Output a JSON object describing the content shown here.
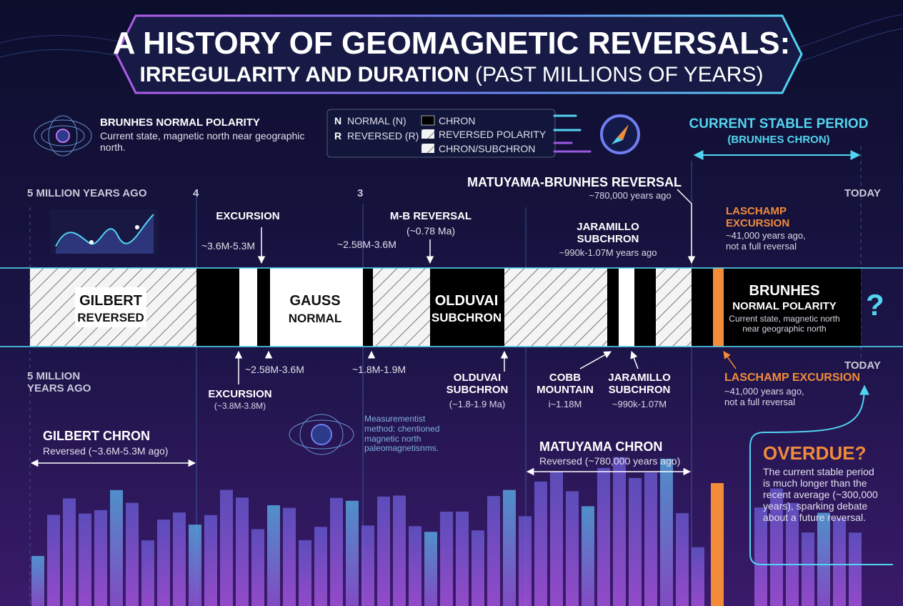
{
  "header": {
    "title": "A HISTORY OF GEOMAGNETIC REVERSALS:",
    "subtitle": "IRREGULARITY AND DURATION",
    "subtitle_note": "(PAST MILLIONS OF YEARS)"
  },
  "brunhes_legend": {
    "title": "BRUNHES NORMAL POLARITY",
    "text": "Current state, magnetic north near geographic north."
  },
  "key": {
    "polarity": [
      {
        "symbol": "N",
        "label": "NORMAL (N)"
      },
      {
        "symbol": "R",
        "label": "REVERSED (R)"
      }
    ],
    "patterns": [
      "CHRON",
      "REVERSED POLARITY",
      "CHRON/SUBCHRON"
    ]
  },
  "current_period": {
    "title": "CURRENT STABLE PERIOD",
    "subtitle": "(BRUNHES CHRON)"
  },
  "top_axis": [
    "5 MILLION YEARS AGO",
    "4",
    "3",
    "TODAY"
  ],
  "top_annotations": {
    "mb_reversal": {
      "title": "MATUYAMA-BRUNHES REVERSAL",
      "text": "~780,000 years ago"
    },
    "excursion": {
      "title": "EXCURSION",
      "text": "~3.6M-5.3M"
    },
    "mb_short": {
      "title": "M-B REVERSAL",
      "text": "(~0.78 Ma)",
      "range": "~2.58M-3.6M"
    },
    "jaramillo": {
      "title": "JARAMILLO SUBCHRON",
      "text": "~990k-1.07M years ago"
    },
    "laschamp": {
      "title": "LASCHAMP EXCURSION",
      "text": "~41,000 years ago, not a full reversal"
    }
  },
  "bar_labels": {
    "gilbert": {
      "title": "GILBERT",
      "text": "REVERSED"
    },
    "gauss": {
      "title": "GAUSS",
      "text": "NORMAL"
    },
    "olduvai": {
      "title": "OLDUVAI",
      "text": "SUBCHRON"
    },
    "brunhes": {
      "title": "BRUNHES",
      "subtitle": "NORMAL POLARITY",
      "text": "Current state, magnetic north near geographic north"
    },
    "question": "?"
  },
  "bottom_annotations": {
    "start": "5 MILLION YEARS AGO",
    "gauss_range": "~2.58M-3.6M",
    "olduvai_range": "~1.8M-1.9M",
    "excursion": {
      "title": "EXCURSION",
      "text": "(~3.8M-3.8M)"
    },
    "olduvai": {
      "title": "OLDUVAI SUBCHRON",
      "text": "(~1.8-1.9 Ma)"
    },
    "cobb": {
      "title": "COBB MOUNTAIN",
      "text": "i~1.18M"
    },
    "jaramillo": {
      "title": "JARAMILLO SUBCHRON",
      "text": "~990k-1.07M"
    },
    "today": "TODAY",
    "laschamp": {
      "title": "LASCHAMP EXCURSION",
      "text": "~41,000 years ago, not a full reversal"
    }
  },
  "chrons": {
    "gilbert": {
      "title": "GILBERT CHRON",
      "text": "Reversed (~3.6M-5.3M ago)"
    },
    "matuyama": {
      "title": "MATUYAMA CHRON",
      "text": "Reversed (~780,000 years ago)"
    }
  },
  "measurement_note": "Measurementist method: chentioned magnetic north paleomagnetisnms.",
  "overdue": {
    "title": "OVERDUE?",
    "text": "The current stable period is much longer than the recent average (~300,000 years), sparking debate about a future reversal."
  }
}
